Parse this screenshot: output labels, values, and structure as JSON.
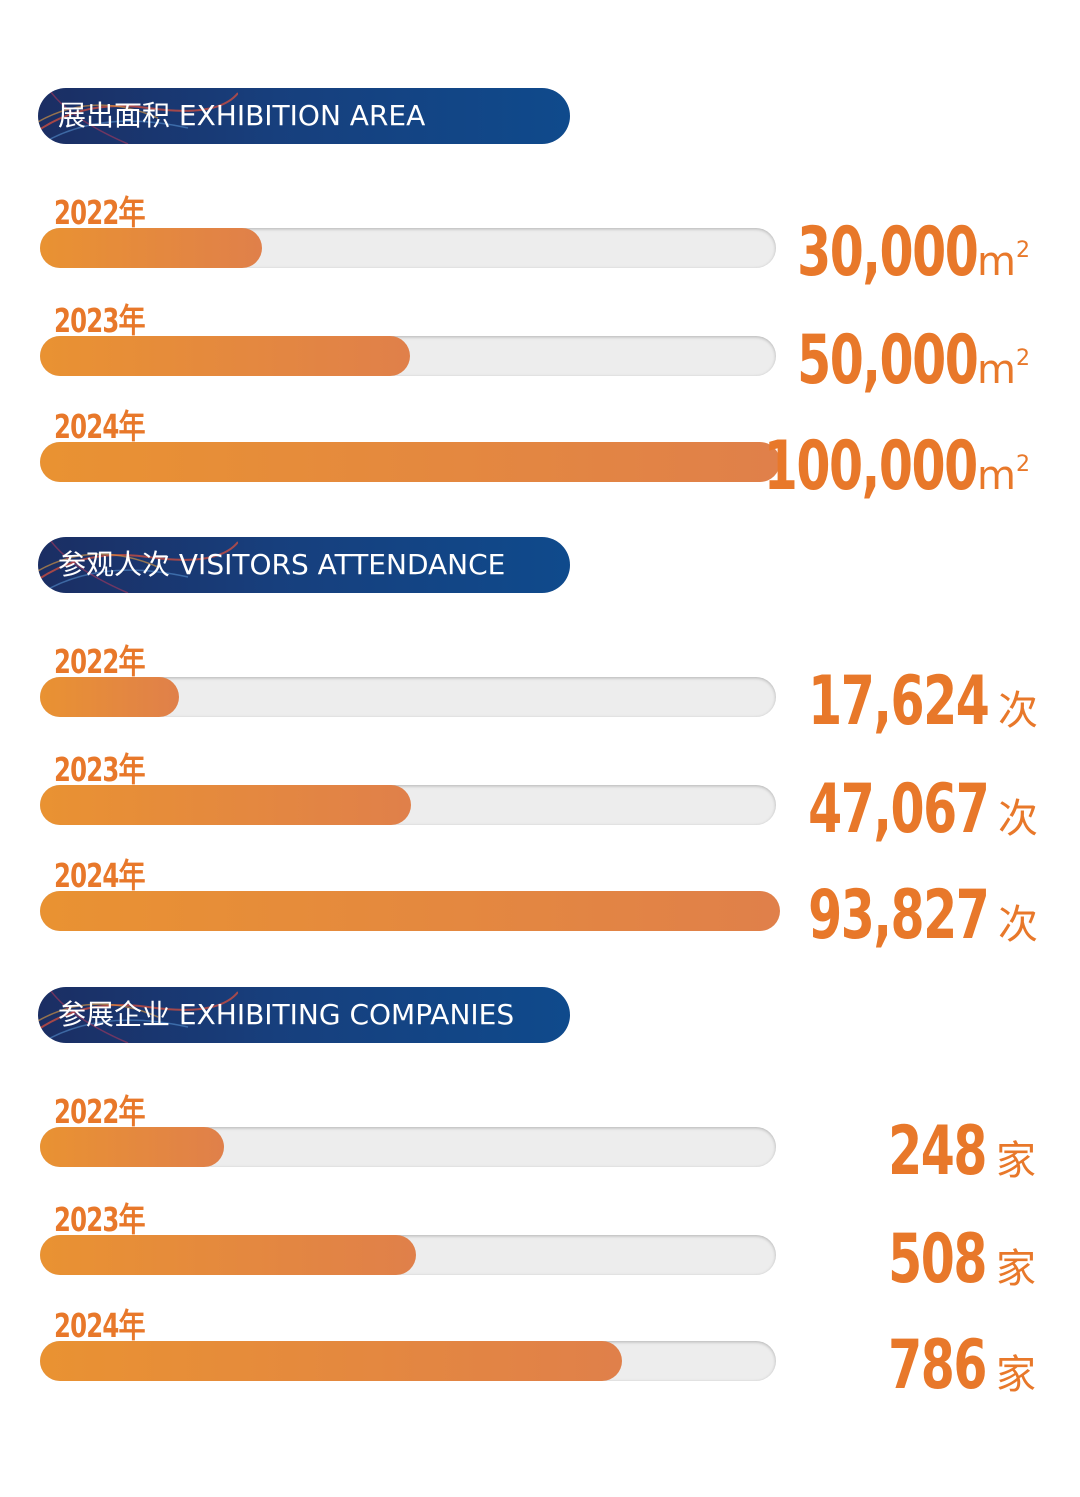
{
  "sections": [
    {
      "title": "展出面积 EXHIBITION AREA",
      "unit_base": "m",
      "unit_sup": "2",
      "max": 100000,
      "rows": [
        {
          "year": "2022年",
          "value_text": "30,000",
          "value": 30000
        },
        {
          "year": "2023年",
          "value_text": "50,000",
          "value": 50000
        },
        {
          "year": "2024年",
          "value_text": "100,000",
          "value": 100000
        }
      ]
    },
    {
      "title": "参观人次 VISITORS ATTENDANCE",
      "unit_base": "次",
      "unit_sup": "",
      "max": 93827,
      "rows": [
        {
          "year": "2022年",
          "value_text": "17,624",
          "value": 17624
        },
        {
          "year": "2023年",
          "value_text": "47,067",
          "value": 47067
        },
        {
          "year": "2024年",
          "value_text": "93,827",
          "value": 93827
        }
      ]
    },
    {
      "title": "参展企业 EXHIBITING COMPANIES",
      "unit_base": "家",
      "unit_sup": "",
      "max": 1000,
      "rows": [
        {
          "year": "2022年",
          "value_text": "248",
          "value": 248
        },
        {
          "year": "2023年",
          "value_text": "508",
          "value": 508
        },
        {
          "year": "2024年",
          "value_text": "786",
          "value": 786
        }
      ]
    }
  ],
  "chart_data": [
    {
      "type": "bar",
      "title": "展出面积 EXHIBITION AREA",
      "categories": [
        "2022年",
        "2023年",
        "2024年"
      ],
      "values": [
        30000,
        50000,
        100000
      ],
      "unit": "m2",
      "ylim": [
        0,
        100000
      ]
    },
    {
      "type": "bar",
      "title": "参观人次 VISITORS ATTENDANCE",
      "categories": [
        "2022年",
        "2023年",
        "2024年"
      ],
      "values": [
        17624,
        47067,
        93827
      ],
      "unit": "次",
      "ylim": [
        0,
        93827
      ]
    },
    {
      "type": "bar",
      "title": "参展企业 EXHIBITING COMPANIES",
      "categories": [
        "2022年",
        "2023年",
        "2024年"
      ],
      "values": [
        248,
        508,
        786
      ],
      "unit": "家",
      "ylim": [
        0,
        1000
      ]
    }
  ],
  "colors": {
    "accent": "#e8782a",
    "pill_dark": "#1b2e63",
    "pill_light": "#0f4a8c",
    "track": "#ededed"
  }
}
